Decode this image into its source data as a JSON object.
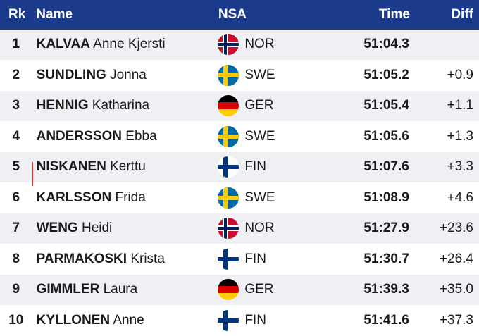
{
  "header": {
    "rk": "Rk",
    "name": "Name",
    "nsa": "NSA",
    "time": "Time",
    "diff": "Diff"
  },
  "flags": {
    "NOR": {
      "icon": "norway-flag-icon",
      "red": "#c8102e",
      "white": "#ffffff",
      "blue": "#00205b"
    },
    "SWE": {
      "icon": "sweden-flag-icon",
      "blue": "#006aa7",
      "yellow": "#fecc00"
    },
    "GER": {
      "icon": "germany-flag-icon",
      "black": "#000000",
      "red": "#dd0000",
      "gold": "#ffce00"
    },
    "FIN": {
      "icon": "finland-flag-icon",
      "white": "#ffffff",
      "blue": "#003580"
    }
  },
  "rows": [
    {
      "rk": "1",
      "last": "KALVAA",
      "first": "Anne Kjersti",
      "nsa": "NOR",
      "time": "51:04.3",
      "diff": ""
    },
    {
      "rk": "2",
      "last": "SUNDLING",
      "first": "Jonna",
      "nsa": "SWE",
      "time": "51:05.2",
      "diff": "+0.9"
    },
    {
      "rk": "3",
      "last": "HENNIG",
      "first": "Katharina",
      "nsa": "GER",
      "time": "51:05.4",
      "diff": "+1.1"
    },
    {
      "rk": "4",
      "last": "ANDERSSON",
      "first": "Ebba",
      "nsa": "SWE",
      "time": "51:05.6",
      "diff": "+1.3"
    },
    {
      "rk": "5",
      "last": "NISKANEN",
      "first": "Kerttu",
      "nsa": "FIN",
      "time": "51:07.6",
      "diff": "+3.3"
    },
    {
      "rk": "6",
      "last": "KARLSSON",
      "first": "Frida",
      "nsa": "SWE",
      "time": "51:08.9",
      "diff": "+4.6"
    },
    {
      "rk": "7",
      "last": "WENG",
      "first": "Heidi",
      "nsa": "NOR",
      "time": "51:27.9",
      "diff": "+23.6"
    },
    {
      "rk": "8",
      "last": "PARMAKOSKI",
      "first": "Krista",
      "nsa": "FIN",
      "time": "51:30.7",
      "diff": "+26.4"
    },
    {
      "rk": "9",
      "last": "GIMMLER",
      "first": "Laura",
      "nsa": "GER",
      "time": "51:39.3",
      "diff": "+35.0"
    },
    {
      "rk": "10",
      "last": "KYLLONEN",
      "first": "Anne",
      "nsa": "FIN",
      "time": "51:41.6",
      "diff": "+37.3"
    }
  ]
}
